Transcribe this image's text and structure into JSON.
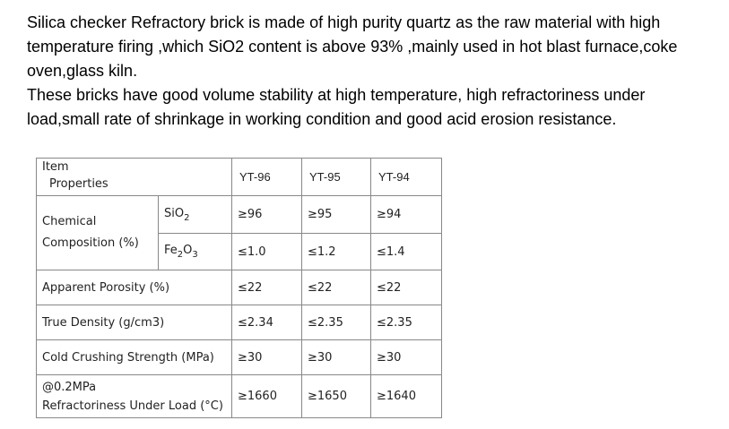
{
  "description": {
    "paragraphs": [
      "Silica checker Refractory brick is made of high purity quartz as the raw material with high temperature firing ,which SiO2 content is above 93% ,mainly used in hot blast furnace,coke oven,glass kiln.",
      "These bricks have good volume stability at high temperature,  high refractoriness under load,small rate of shrinkage in working condition and good acid erosion resistance."
    ]
  },
  "table": {
    "header": {
      "item": "Item",
      "properties": "Properties",
      "grades": [
        "YT-96",
        "YT-95",
        "YT-94"
      ]
    },
    "rows": [
      {
        "group": "Chemical Composition (%)",
        "label": [
          "SiO",
          "2"
        ],
        "values": [
          "≥96",
          "≥95",
          "≥94"
        ]
      },
      {
        "label": [
          "Fe",
          "2",
          "O",
          "3"
        ],
        "values": [
          "≤1.0",
          "≤1.2",
          "≤1.4"
        ]
      },
      {
        "label": "Apparent Porosity (%)",
        "values": [
          "≤22",
          "≤22",
          "≤22"
        ]
      },
      {
        "label": "True Density (g/cm3)",
        "values": [
          "≤2.34",
          "≤2.35",
          "≤2.35"
        ]
      },
      {
        "label": "Cold Crushing Strength (MPa)",
        "values": [
          "≥30",
          "≥30",
          "≥30"
        ]
      },
      {
        "label": [
          "@0.2MPa",
          "Refractoriness Under Load (°C)"
        ],
        "values": [
          "≥1660",
          "≥1650",
          "≥1640"
        ]
      }
    ]
  }
}
